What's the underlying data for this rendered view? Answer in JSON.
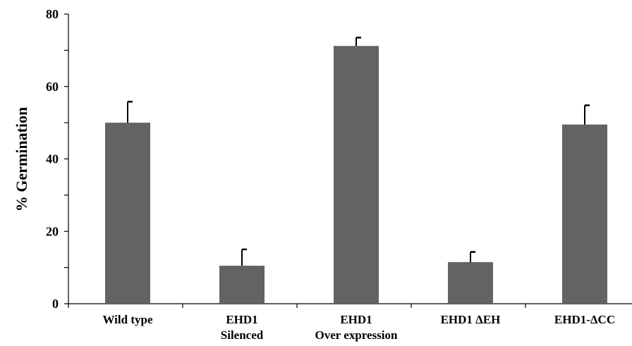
{
  "chart_data": {
    "type": "bar",
    "title": "",
    "xlabel": "",
    "ylabel": "% Germination",
    "ylim": [
      0,
      80
    ],
    "yticks": [
      0,
      20,
      40,
      60,
      80
    ],
    "categories": [
      [
        "Wild type"
      ],
      [
        "EHD1",
        "Silenced"
      ],
      [
        "EHD1",
        "Over expression"
      ],
      [
        "EHD1 ΔEH"
      ],
      [
        "EHD1-ΔCC"
      ]
    ],
    "values": [
      50,
      10.5,
      71.2,
      11.5,
      49.5
    ],
    "errors": [
      5.8,
      4.5,
      2.3,
      2.8,
      5.3
    ],
    "grid": false,
    "legend": "none",
    "bar_color": "#636363",
    "axis_color": "#000000"
  }
}
